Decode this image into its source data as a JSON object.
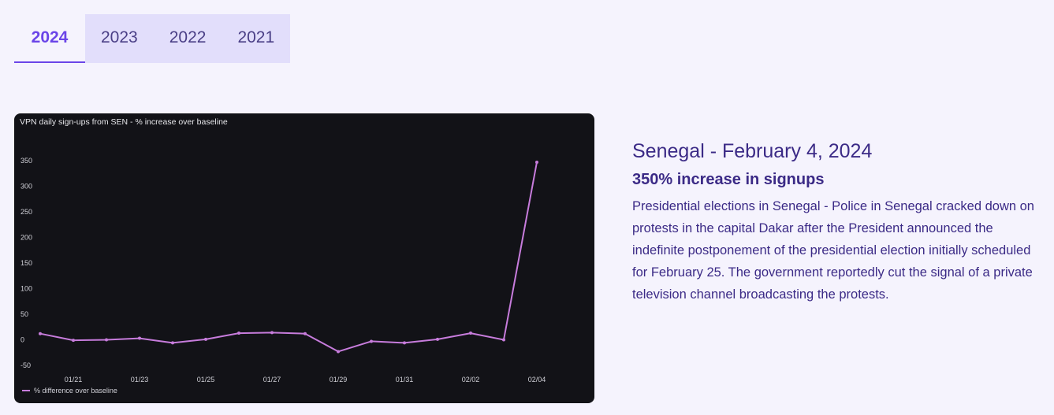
{
  "tabs": [
    {
      "label": "2024",
      "active": true
    },
    {
      "label": "2023",
      "active": false
    },
    {
      "label": "2022",
      "active": false
    },
    {
      "label": "2021",
      "active": false
    }
  ],
  "event": {
    "heading": "Senegal - February 4, 2024",
    "subheading": "350% increase in signups",
    "description": "Presidential elections in Senegal - Police in Senegal cracked down on protests in the capital Dakar after the President announced the indefinite postponement of the presidential election initially scheduled for February 25. The government reportedly cut the signal of a private television channel broadcasting the protests."
  },
  "colors": {
    "accent": "#6b45e8",
    "line": "#c77cdc",
    "chart_bg": "#121217",
    "text": "#3b2a86"
  },
  "chart_data": {
    "type": "line",
    "title": "VPN daily sign-ups from SEN - % increase over baseline",
    "x": [
      "01/20",
      "01/21",
      "01/22",
      "01/23",
      "01/24",
      "01/25",
      "01/26",
      "01/27",
      "01/28",
      "01/29",
      "01/30",
      "01/31",
      "02/01",
      "02/02",
      "02/03",
      "02/04"
    ],
    "x_tick_labels": [
      "01/21",
      "01/23",
      "01/25",
      "01/27",
      "01/29",
      "01/31",
      "02/02",
      "02/04"
    ],
    "y_ticks": [
      350,
      300,
      250,
      200,
      150,
      100,
      50,
      0,
      -50
    ],
    "ylim": [
      -50,
      350
    ],
    "series": [
      {
        "name": "% difference over baseline",
        "values": [
          12,
          -1,
          0,
          3,
          -6,
          1,
          13,
          14,
          12,
          -23,
          -3,
          -6,
          1,
          13,
          0,
          347
        ]
      }
    ],
    "legend_position": "bottom-left",
    "grid": false
  }
}
